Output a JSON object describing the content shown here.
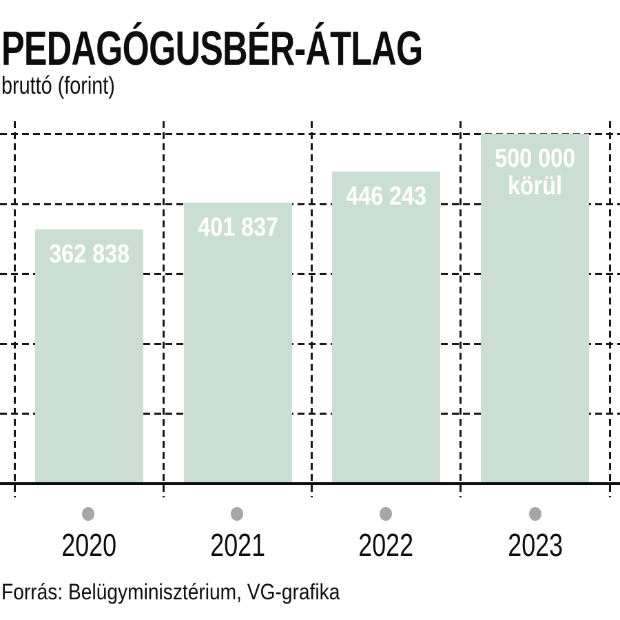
{
  "header": {
    "title": "PEDAGÓGUSBÉR-ÁTLAG",
    "subtitle": "bruttó (forint)"
  },
  "footer": {
    "source": "Forrás: Belügyminisztérium, VG-grafika"
  },
  "chart_data": {
    "type": "bar",
    "title": "PEDAGÓGUSBÉR-ÁTLAG",
    "subtitle": "bruttó (forint)",
    "categories": [
      "2020",
      "2021",
      "2022",
      "2023"
    ],
    "values": [
      362838,
      401837,
      446243,
      500000
    ],
    "bars": [
      {
        "year": "2020",
        "value": 362838,
        "label_lines": [
          "362 838"
        ]
      },
      {
        "year": "2021",
        "value": 401837,
        "label_lines": [
          "401 837"
        ]
      },
      {
        "year": "2022",
        "value": 446243,
        "label_lines": [
          "446 243"
        ]
      },
      {
        "year": "2023",
        "value": 500000,
        "label_lines": [
          "500 000",
          "körül"
        ],
        "approximate": true
      }
    ],
    "ylabel": "bruttó forint",
    "ylim": [
      0,
      500000
    ],
    "gridline_step": 100000,
    "grid": "dashed",
    "legend": "none",
    "bar_color": "#cbded4",
    "bar_label_color": "#ffffff",
    "dot_color": "#a6a6a6",
    "source": "Forrás: Belügyminisztérium, VG-grafika"
  }
}
